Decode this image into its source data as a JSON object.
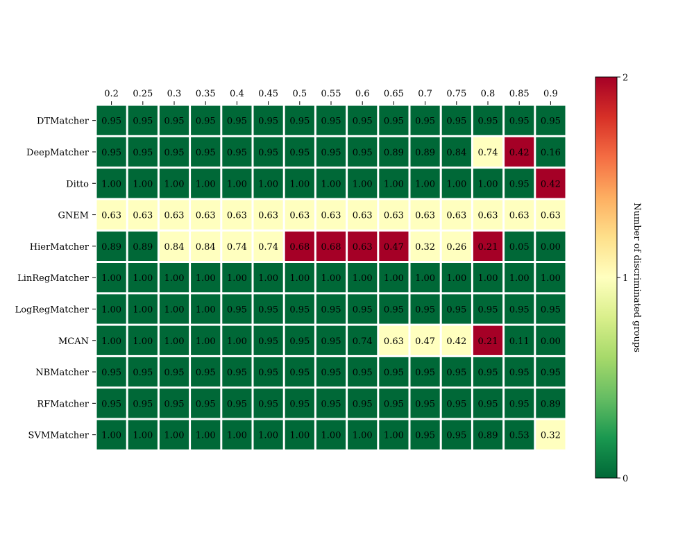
{
  "chart_data": {
    "type": "heatmap",
    "title": "",
    "xlabel": "",
    "ylabel": "",
    "x": [
      "0.2",
      "0.25",
      "0.3",
      "0.35",
      "0.4",
      "0.45",
      "0.5",
      "0.55",
      "0.6",
      "0.65",
      "0.7",
      "0.75",
      "0.8",
      "0.85",
      "0.9"
    ],
    "rows": [
      "DTMatcher",
      "DeepMatcher",
      "Ditto",
      "GNEM",
      "HierMatcher",
      "LinRegMatcher",
      "LogRegMatcher",
      "MCAN",
      "NBMatcher",
      "RFMatcher",
      "SVMMatcher"
    ],
    "cell_labels": [
      [
        "0.95",
        "0.95",
        "0.95",
        "0.95",
        "0.95",
        "0.95",
        "0.95",
        "0.95",
        "0.95",
        "0.95",
        "0.95",
        "0.95",
        "0.95",
        "0.95",
        "0.95"
      ],
      [
        "0.95",
        "0.95",
        "0.95",
        "0.95",
        "0.95",
        "0.95",
        "0.95",
        "0.95",
        "0.95",
        "0.89",
        "0.89",
        "0.84",
        "0.74",
        "0.42",
        "0.16"
      ],
      [
        "1.00",
        "1.00",
        "1.00",
        "1.00",
        "1.00",
        "1.00",
        "1.00",
        "1.00",
        "1.00",
        "1.00",
        "1.00",
        "1.00",
        "1.00",
        "0.95",
        "0.42"
      ],
      [
        "0.63",
        "0.63",
        "0.63",
        "0.63",
        "0.63",
        "0.63",
        "0.63",
        "0.63",
        "0.63",
        "0.63",
        "0.63",
        "0.63",
        "0.63",
        "0.63",
        "0.63"
      ],
      [
        "0.89",
        "0.89",
        "0.84",
        "0.84",
        "0.74",
        "0.74",
        "0.68",
        "0.68",
        "0.63",
        "0.47",
        "0.32",
        "0.26",
        "0.21",
        "0.05",
        "0.00"
      ],
      [
        "1.00",
        "1.00",
        "1.00",
        "1.00",
        "1.00",
        "1.00",
        "1.00",
        "1.00",
        "1.00",
        "1.00",
        "1.00",
        "1.00",
        "1.00",
        "1.00",
        "1.00"
      ],
      [
        "1.00",
        "1.00",
        "1.00",
        "1.00",
        "0.95",
        "0.95",
        "0.95",
        "0.95",
        "0.95",
        "0.95",
        "0.95",
        "0.95",
        "0.95",
        "0.95",
        "0.95"
      ],
      [
        "1.00",
        "1.00",
        "1.00",
        "1.00",
        "1.00",
        "0.95",
        "0.95",
        "0.95",
        "0.74",
        "0.63",
        "0.47",
        "0.42",
        "0.21",
        "0.11",
        "0.00"
      ],
      [
        "0.95",
        "0.95",
        "0.95",
        "0.95",
        "0.95",
        "0.95",
        "0.95",
        "0.95",
        "0.95",
        "0.95",
        "0.95",
        "0.95",
        "0.95",
        "0.95",
        "0.95"
      ],
      [
        "0.95",
        "0.95",
        "0.95",
        "0.95",
        "0.95",
        "0.95",
        "0.95",
        "0.95",
        "0.95",
        "0.95",
        "0.95",
        "0.95",
        "0.95",
        "0.95",
        "0.89"
      ],
      [
        "1.00",
        "1.00",
        "1.00",
        "1.00",
        "1.00",
        "1.00",
        "1.00",
        "1.00",
        "1.00",
        "1.00",
        "0.95",
        "0.95",
        "0.89",
        "0.53",
        "0.32"
      ]
    ],
    "color_values": [
      [
        0,
        0,
        0,
        0,
        0,
        0,
        0,
        0,
        0,
        0,
        0,
        0,
        0,
        0,
        0
      ],
      [
        0,
        0,
        0,
        0,
        0,
        0,
        0,
        0,
        0,
        0,
        0,
        0,
        1,
        2,
        0
      ],
      [
        0,
        0,
        0,
        0,
        0,
        0,
        0,
        0,
        0,
        0,
        0,
        0,
        0,
        0,
        2
      ],
      [
        1,
        1,
        1,
        1,
        1,
        1,
        1,
        1,
        1,
        1,
        1,
        1,
        1,
        1,
        1
      ],
      [
        0,
        0,
        1,
        1,
        1,
        1,
        2,
        2,
        2,
        2,
        1,
        1,
        2,
        0,
        0
      ],
      [
        0,
        0,
        0,
        0,
        0,
        0,
        0,
        0,
        0,
        0,
        0,
        0,
        0,
        0,
        0
      ],
      [
        0,
        0,
        0,
        0,
        0,
        0,
        0,
        0,
        0,
        0,
        0,
        0,
        0,
        0,
        0
      ],
      [
        0,
        0,
        0,
        0,
        0,
        0,
        0,
        0,
        0,
        1,
        1,
        1,
        2,
        0,
        0
      ],
      [
        0,
        0,
        0,
        0,
        0,
        0,
        0,
        0,
        0,
        0,
        0,
        0,
        0,
        0,
        0
      ],
      [
        0,
        0,
        0,
        0,
        0,
        0,
        0,
        0,
        0,
        0,
        0,
        0,
        0,
        0,
        0
      ],
      [
        0,
        0,
        0,
        0,
        0,
        0,
        0,
        0,
        0,
        0,
        0,
        0,
        0,
        0,
        1
      ]
    ],
    "colorbar": {
      "label": "Number of discriminated groups",
      "range": [
        0,
        2
      ],
      "ticks": [
        "0",
        "1",
        "2"
      ],
      "colormap": "RdYlGn_r",
      "stops": [
        "#006837",
        "#1a9850",
        "#66bd63",
        "#a6d96a",
        "#d9ef8b",
        "#ffffbf",
        "#fee08b",
        "#fdae61",
        "#f46d43",
        "#d73027",
        "#a50026"
      ]
    },
    "x_ticks_position": "top",
    "grid": false,
    "cell_border_color": "#ffffff"
  }
}
